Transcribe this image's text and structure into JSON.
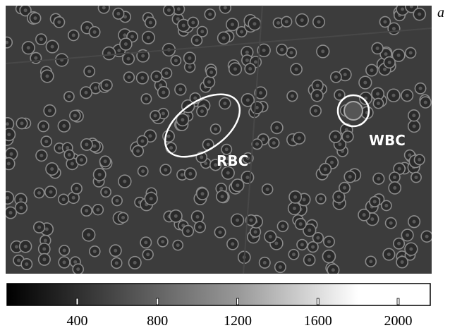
{
  "panel_label": "a",
  "annotations": [
    {
      "label": "RBC"
    },
    {
      "label": "WBC"
    }
  ],
  "colorbar": {
    "lim": [
      50,
      2160
    ],
    "ticks": [
      400,
      800,
      1200,
      1600,
      2000
    ]
  }
}
